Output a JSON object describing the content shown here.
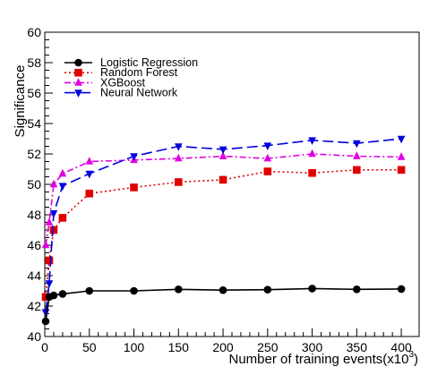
{
  "chart_data": {
    "type": "line",
    "xlabel": "Number of training events(x10",
    "xlabel_sup": "3",
    "xlabel_close": ")",
    "ylabel": "Significance",
    "xlim": [
      0,
      420
    ],
    "ylim": [
      40,
      60
    ],
    "x_ticks": [
      0,
      50,
      100,
      150,
      200,
      250,
      300,
      350,
      400
    ],
    "y_ticks": [
      40,
      42,
      44,
      46,
      48,
      50,
      52,
      54,
      56,
      58,
      60
    ],
    "legend_position": "top-left",
    "grid": false,
    "series": [
      {
        "name": "Logistic Regression",
        "color": "#000000",
        "marker": "circle",
        "dash": "solid",
        "x": [
          1,
          5,
          10,
          20,
          50,
          100,
          150,
          200,
          250,
          300,
          350,
          400
        ],
        "y": [
          41.0,
          42.6,
          42.7,
          42.8,
          43.0,
          43.0,
          43.1,
          43.05,
          43.08,
          43.15,
          43.1,
          43.12
        ]
      },
      {
        "name": "Random Forest",
        "color": "#e00000",
        "marker": "square",
        "dash": "dotted",
        "x": [
          1,
          5,
          10,
          20,
          50,
          100,
          150,
          200,
          250,
          300,
          350,
          400
        ],
        "y": [
          42.6,
          45.0,
          47.0,
          47.8,
          49.4,
          49.8,
          50.15,
          50.3,
          50.85,
          50.75,
          50.95,
          50.95
        ]
      },
      {
        "name": "XGBoost",
        "color": "#e000e0",
        "marker": "triangle-up",
        "dash": "dashdot",
        "x": [
          1,
          5,
          10,
          20,
          50,
          100,
          150,
          200,
          250,
          300,
          350,
          400
        ],
        "y": [
          46.0,
          47.5,
          50.0,
          50.7,
          51.5,
          51.6,
          51.7,
          51.85,
          51.7,
          52.0,
          51.85,
          51.8
        ]
      },
      {
        "name": "Neural Network",
        "color": "#0000e0",
        "marker": "triangle-down",
        "dash": "longdash",
        "x": [
          1,
          5,
          10,
          20,
          50,
          100,
          150,
          200,
          250,
          300,
          350,
          400
        ],
        "y": [
          41.6,
          43.5,
          48.1,
          49.9,
          50.7,
          51.85,
          52.5,
          52.3,
          52.55,
          52.9,
          52.7,
          53.0
        ]
      }
    ]
  }
}
